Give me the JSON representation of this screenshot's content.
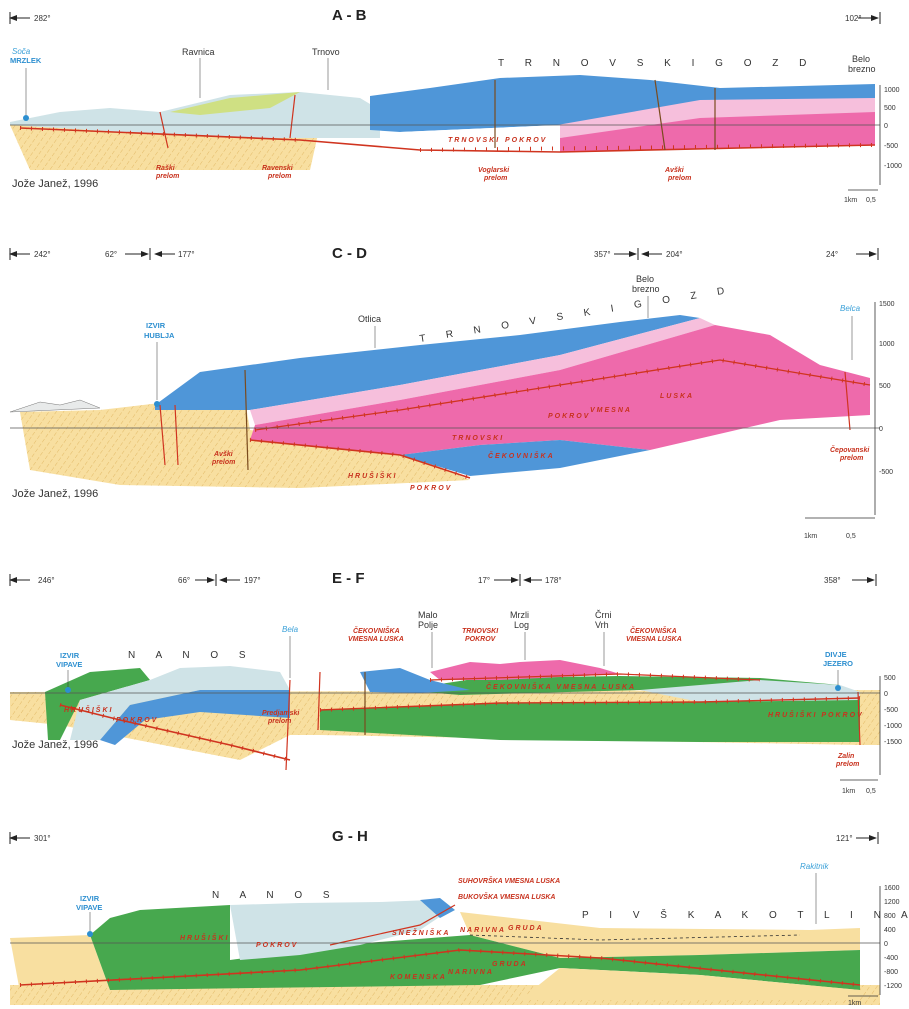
{
  "sections": [
    {
      "id": "ab",
      "title": "A - B",
      "directions": [
        "282°",
        "102°"
      ],
      "places": [
        "Ravnica",
        "Trnovo",
        "Belo",
        "brezno"
      ],
      "region": "T R N O V S K I    G O Z D",
      "spring": {
        "name": "Soča",
        "label": "MRZLEK"
      },
      "faults": [
        [
          "Raški",
          "prelom"
        ],
        [
          "Ravenski",
          "prelom"
        ],
        [
          "Voglarski",
          "prelom"
        ],
        [
          "Avški",
          "prelom"
        ]
      ],
      "overthrust": [
        "TRNOVSKI",
        "POKROV"
      ],
      "author": "Jože Janež, 1996",
      "scale": [
        "1000",
        "500",
        "0",
        "-500",
        "-1000"
      ],
      "scalebar": [
        "1km",
        "0,5"
      ]
    },
    {
      "id": "cd",
      "title": "C - D",
      "directions": [
        "242°",
        "62°",
        "177°",
        "357°",
        "204°",
        "24°"
      ],
      "places": [
        "Otlica",
        "Belo",
        "brezno"
      ],
      "region": "T R N O V S K I    G O Z D",
      "springs": [
        {
          "label1": "IZVIR",
          "label2": "HUBLJA"
        },
        {
          "name": "Belca"
        }
      ],
      "units": [
        "TRNOVSKI",
        "POKROV",
        "VMESNA",
        "LUSKA",
        "ČEKOVNIŠKA",
        "HRUŠIŠKI",
        "POKROV"
      ],
      "faults": [
        [
          "Avški",
          "prelom"
        ],
        [
          "Čepovanski",
          "prelom"
        ]
      ],
      "author": "Jože Janež, 1996",
      "scale": [
        "1500",
        "1000",
        "500",
        "0",
        "-500"
      ],
      "scalebar": [
        "1km",
        "0,5"
      ]
    },
    {
      "id": "ef",
      "title": "E - F",
      "directions": [
        "246°",
        "66°",
        "197°",
        "17°",
        "178°",
        "358°"
      ],
      "places": [
        "Malo",
        "Polje",
        "Mrzli",
        "Log",
        "Črni",
        "Vrh"
      ],
      "region": "N A N O S",
      "springs": [
        {
          "label1": "IZVIR",
          "label2": "VIPAVE"
        },
        {
          "name": "Bela"
        },
        {
          "label1": "DIVJE",
          "label2": "JEZERO"
        }
      ],
      "units": [
        "ČEKOVNIŠKA",
        "VMESNA LUSKA",
        "TRNOVSKI",
        "POKROV",
        "ČEKOVNIŠKA",
        "VMESNA LUSKA",
        "HRUŠIŠKI",
        "POKROV",
        "HRUŠIŠKI POKROV",
        "ČEKOVNIŠKA VMESNA LUSKA"
      ],
      "faults": [
        [
          "Predjamski",
          "prelom"
        ],
        [
          "Zalin",
          "prelom"
        ]
      ],
      "author": "Jože Janež, 1996",
      "scale": [
        "500",
        "0",
        "-500",
        "-1000",
        "-1500"
      ],
      "scalebar": [
        "1km",
        "0,5"
      ]
    },
    {
      "id": "gh",
      "title": "G - H",
      "directions": [
        "301°",
        "121°"
      ],
      "region1": "N A N O S",
      "region2": "P I V Š K A    K O T L I N A",
      "springs": [
        {
          "label1": "IZVIR",
          "label2": "VIPAVE"
        },
        {
          "name": "Rakitnik"
        }
      ],
      "units": [
        "SUHOVRŠKA VMESNA LUSKA",
        "BUKOVŠKA VMESNA LUSKA",
        "HRUŠIŠKI",
        "POKROV",
        "SNEŽNIŠKA",
        "NARIVNA",
        "GRUDA",
        "KOMENSKA",
        "NARIVNA",
        "GRUDA"
      ],
      "scale": [
        "1600",
        "1200",
        "800",
        "400",
        "0",
        "-400",
        "-800",
        "-1200"
      ],
      "scalebar": [
        "1km"
      ]
    }
  ],
  "colors": {
    "blue": "#4f96d8",
    "lightblue": "#cfe3e7",
    "pink": "#ee6aab",
    "lightpink": "#f6bfdc",
    "green": "#47a84e",
    "yellowgreen": "#cfe083",
    "sand": "#f8dfa0",
    "fault": "#d0341f"
  }
}
